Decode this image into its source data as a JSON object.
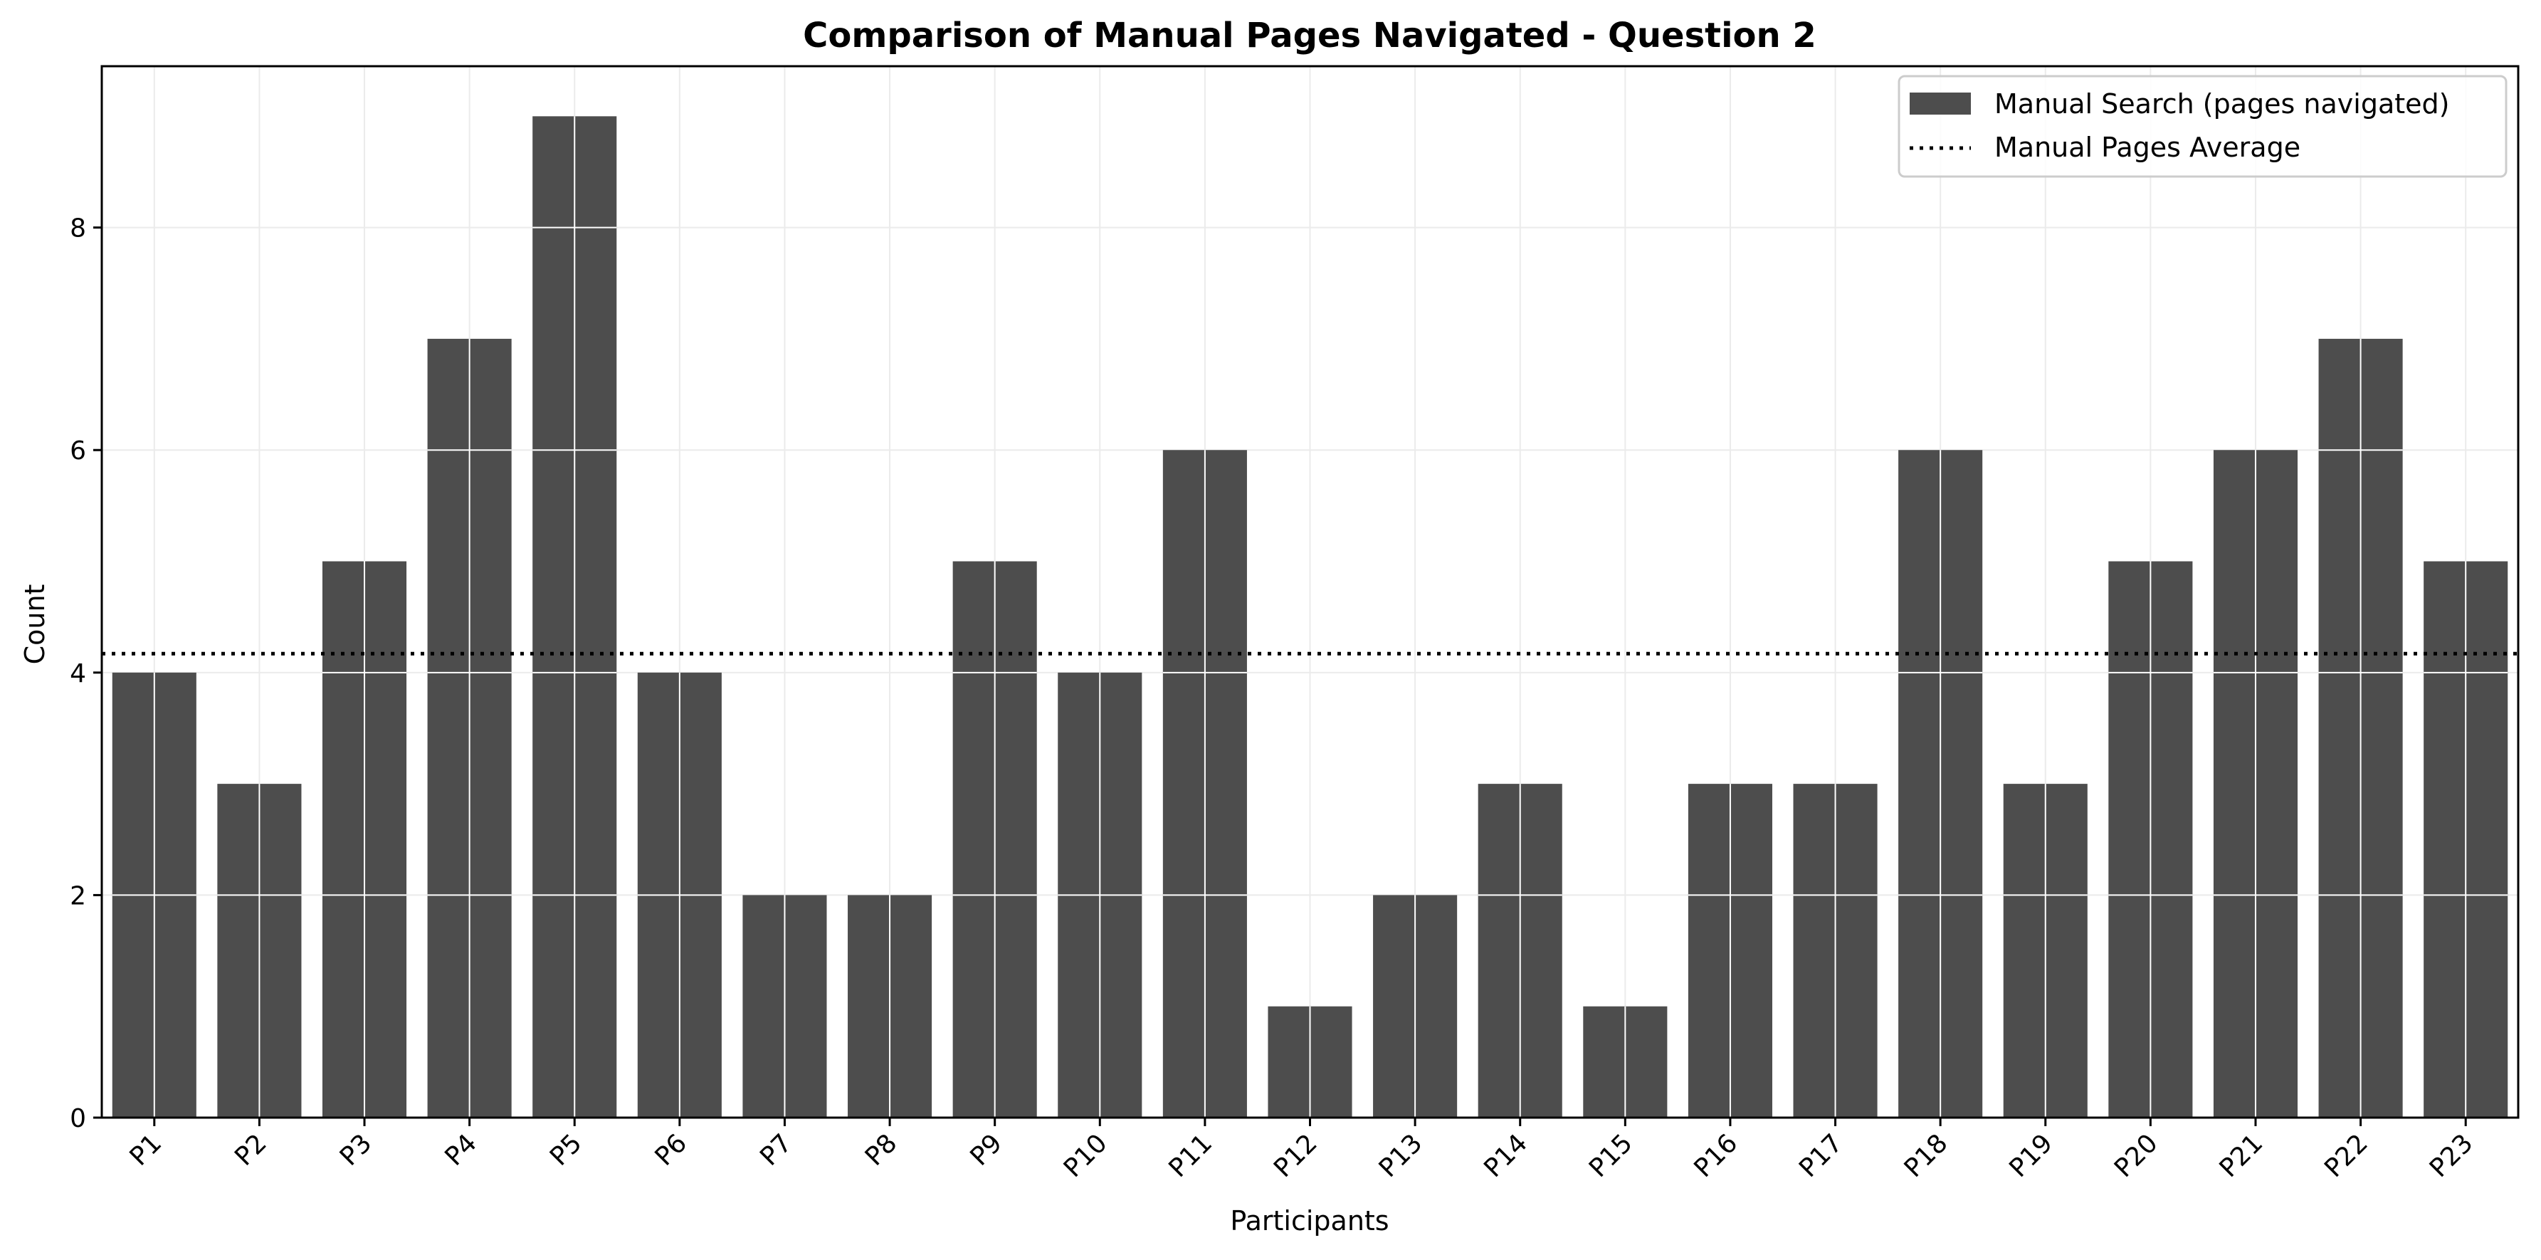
{
  "chart_data": {
    "type": "bar",
    "title": "Comparison of Manual Pages Navigated - Question 2",
    "xlabel": "Participants",
    "ylabel": "Count",
    "categories": [
      "P1",
      "P2",
      "P3",
      "P4",
      "P5",
      "P6",
      "P7",
      "P8",
      "P9",
      "P10",
      "P11",
      "P12",
      "P13",
      "P14",
      "P15",
      "P16",
      "P17",
      "P18",
      "P19",
      "P20",
      "P21",
      "P22",
      "P23"
    ],
    "series": [
      {
        "name": "Manual Search (pages navigated)",
        "values": [
          4,
          3,
          5,
          7,
          9,
          4,
          2,
          2,
          5,
          4,
          6,
          1,
          2,
          3,
          1,
          3,
          3,
          6,
          3,
          5,
          6,
          7,
          5
        ],
        "color": "#4d4d4d"
      }
    ],
    "average_line": {
      "name": "Manual Pages Average",
      "value": 4.17,
      "style": "dotted",
      "color": "#000000"
    },
    "ylim": [
      0,
      9.45
    ],
    "yticks": [
      0,
      2,
      4,
      6,
      8
    ],
    "grid": true,
    "legend_position": "top-right"
  }
}
